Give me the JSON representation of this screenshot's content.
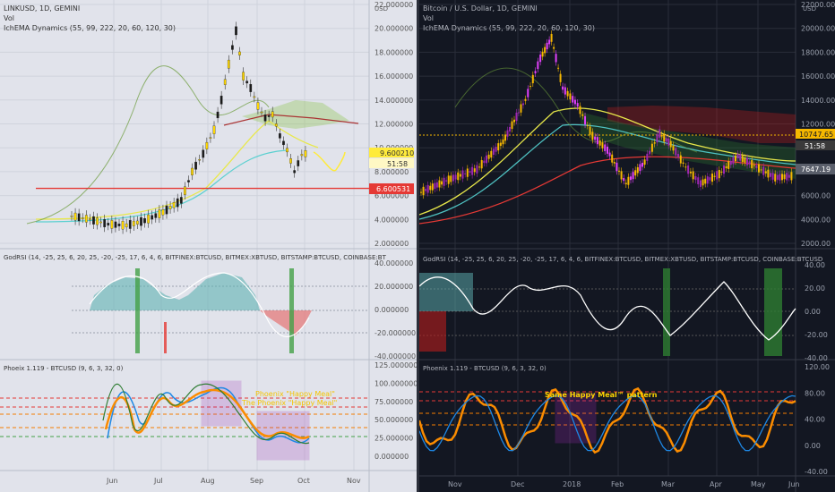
{
  "left": {
    "symbol_title": "LINKUSD, 1D, GEMINI",
    "vol_label": "Vol",
    "ichema_label": "IchEMA Dynamics (55, 99, 222, 20, 60, 120, 30)",
    "currency": "USD",
    "price_axis": [
      "22.000000",
      "20.000000",
      "18.000000",
      "16.000000",
      "14.000000",
      "12.000000",
      "10.000000",
      "8.000000",
      "6.000000",
      "4.000000",
      "2.000000"
    ],
    "price_tag": "9.600210",
    "countdown": "51:58",
    "level_tag": "6.600531",
    "rsi_title": "GodRSI (14, -25, 25, 6, 20, 25, -20, -25, 17, 6, 4, 6, BITFINEX:BTCUSD, BITMEX:XBTUSD, BITSTAMP:BTCUSD, COINBASE:BT",
    "rsi_axis": [
      "40.000000",
      "20.000000",
      "0.000000",
      "-20.000000",
      "-40.000000"
    ],
    "phoenix_title": "Phoeix 1.119 - BTCUSD (9, 6, 3, 32, 0)",
    "phoenix_axis": [
      "125.000000",
      "100.000000",
      "75.000000",
      "50.000000",
      "25.000000",
      "0.000000"
    ],
    "annotation_1": "Phoenix \"Happy Meal\"",
    "annotation_2": "The Phoenix \"Happy Meal\"",
    "time_axis": [
      "Jun",
      "Jul",
      "Aug",
      "Sep",
      "Oct",
      "Nov"
    ]
  },
  "right": {
    "symbol_title": "Bitcoin / U.S. Dollar, 1D, GEMINI",
    "vol_label": "Vol",
    "ichema_label": "IchEMA Dynamics (55, 99, 222, 20, 60, 120, 30)",
    "currency": "USD",
    "price_axis": [
      "22000.00",
      "20000.00",
      "18000.00",
      "16000.00",
      "14000.00",
      "12000.00",
      "10000.00",
      "8000.00",
      "6000.00",
      "4000.00",
      "2000.00"
    ],
    "price_tag": "10747.65",
    "countdown": "51:58",
    "last_tag": "7647.19",
    "rsi_title": "GodRSI (14, -25, 25, 6, 20, 25, -20, -25, 17, 6, 4, 6, BITFINEX:BTCUSD, BITMEX:XBTUSD, BITSTAMP:BTCUSD, COINBASE:BTCUSD",
    "rsi_axis": [
      "40.00",
      "20.00",
      "0.00",
      "-20.00",
      "-40.00"
    ],
    "phoenix_title": "Phoenix 1.119 - BTCUSD (9, 6, 3, 32, 0)",
    "phoenix_axis": [
      "120.00",
      "80.00",
      "40.00",
      "0.00",
      "-40.00"
    ],
    "annotation": "Same Happy Meal™ pattern",
    "time_axis": [
      "Nov",
      "Dec",
      "2018",
      "Feb",
      "Mar",
      "Apr",
      "May",
      "Jun"
    ]
  },
  "colors": {
    "left_bg": "#e1e3eb",
    "right_bg": "#131722",
    "candle": "#ffd700",
    "right_candle": "#f5b700",
    "red_line": "#e53935",
    "teal": "#4ec0c0",
    "purple": "#9c27b0"
  },
  "chart_data": [
    {
      "type": "line",
      "title": "LINKUSD, 1D, GEMINI",
      "ylim": [
        2,
        22
      ],
      "price_points": [
        [
          0,
          4.3
        ],
        [
          5,
          4.0
        ],
        [
          10,
          3.6
        ],
        [
          15,
          3.5
        ],
        [
          20,
          3.9
        ],
        [
          25,
          4.6
        ],
        [
          30,
          5.6
        ],
        [
          33,
          8.0
        ],
        [
          36,
          9.5
        ],
        [
          39,
          11.5
        ],
        [
          41,
          14
        ],
        [
          43,
          17
        ],
        [
          45,
          19.8
        ],
        [
          47,
          16
        ],
        [
          49,
          15
        ],
        [
          51,
          13.5
        ],
        [
          53,
          12.5
        ],
        [
          55,
          12.8
        ],
        [
          57,
          11
        ],
        [
          59,
          9.8
        ],
        [
          61,
          8.0
        ],
        [
          63,
          9.4
        ],
        [
          65,
          9.6
        ]
      ],
      "level_line": 6.600531,
      "last_price": 9.60021
    },
    {
      "type": "line",
      "title": "Bitcoin / U.S. Dollar, 1D, GEMINI",
      "ylim": [
        2000,
        22000
      ],
      "price_points": [
        [
          0,
          6300
        ],
        [
          8,
          7400
        ],
        [
          15,
          8200
        ],
        [
          22,
          10500
        ],
        [
          28,
          14000
        ],
        [
          32,
          17500
        ],
        [
          35,
          19200
        ],
        [
          38,
          15000
        ],
        [
          42,
          13600
        ],
        [
          46,
          11000
        ],
        [
          50,
          9800
        ],
        [
          55,
          7000
        ],
        [
          60,
          8800
        ],
        [
          64,
          11200
        ],
        [
          67,
          10300
        ],
        [
          71,
          8400
        ],
        [
          75,
          7000
        ],
        [
          80,
          7800
        ],
        [
          85,
          9300
        ],
        [
          90,
          8400
        ],
        [
          95,
          7500
        ],
        [
          100,
          7647
        ]
      ],
      "last_price": 7647.19,
      "marked_price": 10747.65
    }
  ]
}
